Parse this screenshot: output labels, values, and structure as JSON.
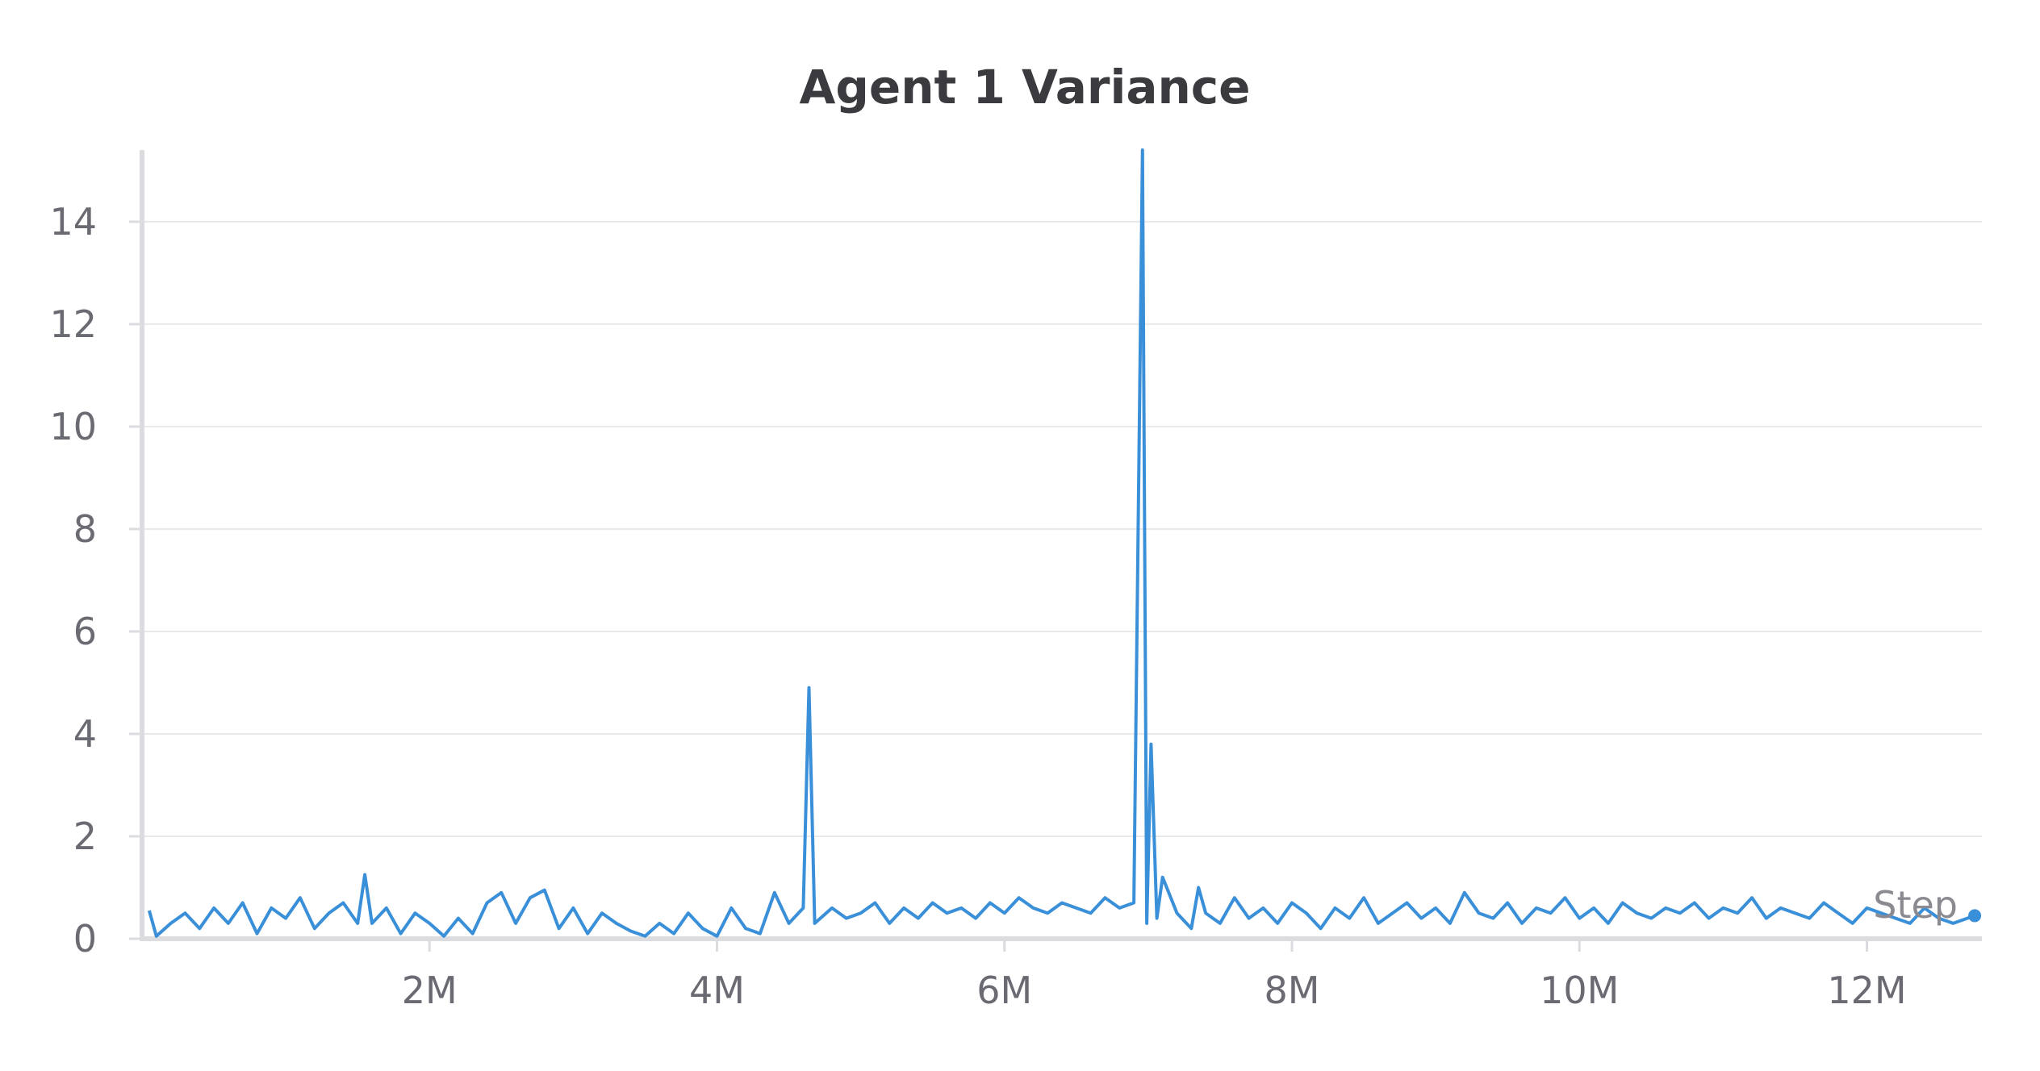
{
  "chart_data": {
    "type": "line",
    "title": "Agent 1 Variance",
    "xlabel": "Step",
    "ylabel": "",
    "xlim": [
      0,
      12800000
    ],
    "ylim": [
      0,
      15.4
    ],
    "grid": true,
    "legend": "none",
    "x_ticks": [
      {
        "value": 2000000,
        "label": "2M"
      },
      {
        "value": 4000000,
        "label": "4M"
      },
      {
        "value": 6000000,
        "label": "6M"
      },
      {
        "value": 8000000,
        "label": "8M"
      },
      {
        "value": 10000000,
        "label": "10M"
      },
      {
        "value": 12000000,
        "label": "12M"
      }
    ],
    "y_ticks": [
      {
        "value": 0,
        "label": "0"
      },
      {
        "value": 2,
        "label": "2"
      },
      {
        "value": 4,
        "label": "4"
      },
      {
        "value": 6,
        "label": "6"
      },
      {
        "value": 8,
        "label": "8"
      },
      {
        "value": 10,
        "label": "10"
      },
      {
        "value": 12,
        "label": "12"
      },
      {
        "value": 14,
        "label": "14"
      }
    ],
    "series": [
      {
        "color": "#3a8fd9",
        "x": [
          50000,
          100000,
          200000,
          300000,
          400000,
          500000,
          600000,
          700000,
          800000,
          900000,
          1000000,
          1100000,
          1200000,
          1300000,
          1400000,
          1500000,
          1550000,
          1600000,
          1700000,
          1800000,
          1900000,
          2000000,
          2100000,
          2200000,
          2300000,
          2400000,
          2500000,
          2600000,
          2700000,
          2800000,
          2900000,
          3000000,
          3100000,
          3200000,
          3300000,
          3400000,
          3500000,
          3600000,
          3700000,
          3800000,
          3900000,
          4000000,
          4100000,
          4200000,
          4300000,
          4400000,
          4500000,
          4600000,
          4640000,
          4680000,
          4800000,
          4900000,
          5000000,
          5100000,
          5200000,
          5300000,
          5400000,
          5500000,
          5600000,
          5700000,
          5800000,
          5900000,
          6000000,
          6100000,
          6200000,
          6300000,
          6400000,
          6500000,
          6600000,
          6700000,
          6800000,
          6900000,
          6960000,
          6990000,
          7020000,
          7060000,
          7100000,
          7200000,
          7300000,
          7350000,
          7400000,
          7500000,
          7600000,
          7700000,
          7800000,
          7900000,
          8000000,
          8100000,
          8200000,
          8300000,
          8400000,
          8500000,
          8600000,
          8700000,
          8800000,
          8900000,
          9000000,
          9100000,
          9200000,
          9300000,
          9400000,
          9500000,
          9600000,
          9700000,
          9800000,
          9900000,
          10000000,
          10100000,
          10200000,
          10300000,
          10400000,
          10500000,
          10600000,
          10700000,
          10800000,
          10900000,
          11000000,
          11100000,
          11200000,
          11300000,
          11400000,
          11500000,
          11600000,
          11700000,
          11800000,
          11900000,
          12000000,
          12100000,
          12200000,
          12300000,
          12400000,
          12500000,
          12600000,
          12750000
        ],
        "y": [
          0.55,
          0.05,
          0.3,
          0.5,
          0.2,
          0.6,
          0.3,
          0.7,
          0.1,
          0.6,
          0.4,
          0.8,
          0.2,
          0.5,
          0.7,
          0.3,
          1.25,
          0.3,
          0.6,
          0.1,
          0.5,
          0.3,
          0.05,
          0.4,
          0.1,
          0.7,
          0.9,
          0.3,
          0.8,
          0.95,
          0.2,
          0.6,
          0.1,
          0.5,
          0.3,
          0.15,
          0.05,
          0.3,
          0.1,
          0.5,
          0.2,
          0.05,
          0.6,
          0.2,
          0.1,
          0.9,
          0.3,
          0.6,
          4.9,
          0.3,
          0.6,
          0.4,
          0.5,
          0.7,
          0.3,
          0.6,
          0.4,
          0.7,
          0.5,
          0.6,
          0.4,
          0.7,
          0.5,
          0.8,
          0.6,
          0.5,
          0.7,
          0.6,
          0.5,
          0.8,
          0.6,
          0.7,
          15.4,
          0.3,
          3.8,
          0.4,
          1.2,
          0.5,
          0.2,
          1.0,
          0.5,
          0.3,
          0.8,
          0.4,
          0.6,
          0.3,
          0.7,
          0.5,
          0.2,
          0.6,
          0.4,
          0.8,
          0.3,
          0.5,
          0.7,
          0.4,
          0.6,
          0.3,
          0.9,
          0.5,
          0.4,
          0.7,
          0.3,
          0.6,
          0.5,
          0.8,
          0.4,
          0.6,
          0.3,
          0.7,
          0.5,
          0.4,
          0.6,
          0.5,
          0.7,
          0.4,
          0.6,
          0.5,
          0.8,
          0.4,
          0.6,
          0.5,
          0.4,
          0.7,
          0.5,
          0.3,
          0.6,
          0.5,
          0.4,
          0.3,
          0.6,
          0.4,
          0.3,
          0.45
        ]
      }
    ]
  }
}
